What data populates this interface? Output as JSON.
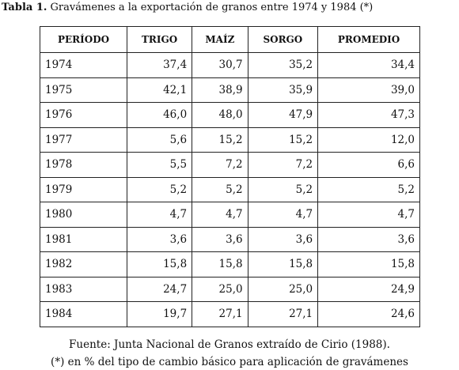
{
  "title": {
    "label": "Tabla 1.",
    "text": "Gravámenes a la exportación de granos entre 1974 y 1984 (*)"
  },
  "table": {
    "headers": [
      "PERÍODO",
      "TRIGO",
      "MAÍZ",
      "SORGO",
      "PROMEDIO"
    ],
    "rows": [
      [
        "1974",
        "37,4",
        "30,7",
        "35,2",
        "34,4"
      ],
      [
        "1975",
        "42,1",
        "38,9",
        "35,9",
        "39,0"
      ],
      [
        "1976",
        "46,0",
        "48,0",
        "47,9",
        "47,3"
      ],
      [
        "1977",
        "5,6",
        "15,2",
        "15,2",
        "12,0"
      ],
      [
        "1978",
        "5,5",
        "7,2",
        "7,2",
        "6,6"
      ],
      [
        "1979",
        "5,2",
        "5,2",
        "5,2",
        "5,2"
      ],
      [
        "1980",
        "4,7",
        "4,7",
        "4,7",
        "4,7"
      ],
      [
        "1981",
        "3,6",
        "3,6",
        "3,6",
        "3,6"
      ],
      [
        "1982",
        "15,8",
        "15,8",
        "15,8",
        "15,8"
      ],
      [
        "1983",
        "24,7",
        "25,0",
        "25,0",
        "24,9"
      ],
      [
        "1984",
        "19,7",
        "27,1",
        "27,1",
        "24,6"
      ]
    ]
  },
  "footnotes": [
    "Fuente: Junta Nacional de Granos extraído de Cirio (1988).",
    "(*) en % del tipo de cambio básico para aplicación de gravámenes"
  ]
}
